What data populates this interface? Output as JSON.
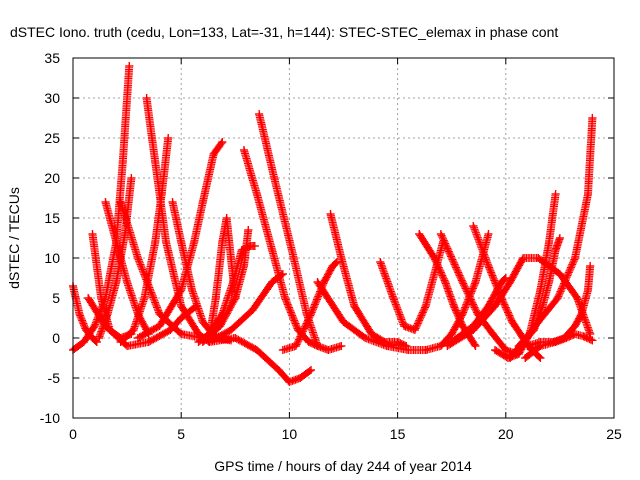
{
  "chart_data": {
    "type": "scatter",
    "title": "dSTEC Iono. truth (cedu, Lon=133, Lat=-31, h=144): STEC-STEC_elemax in phase cont",
    "xlabel": "GPS time / hours of day 244 of year 2014",
    "ylabel": "dSTEC  / TECUs",
    "xlim": [
      0,
      25
    ],
    "ylim": [
      -10,
      35
    ],
    "xticks": [
      0,
      5,
      10,
      15,
      20,
      25
    ],
    "yticks": [
      -10,
      -5,
      0,
      5,
      10,
      15,
      20,
      25,
      30,
      35
    ],
    "grid": true,
    "marker": "+",
    "color": "#ff0000",
    "series": [
      {
        "x": [
          0.0,
          0.3,
          0.6,
          0.9,
          1.1
        ],
        "y": [
          6.5,
          3.0,
          1.0,
          0.0,
          -0.5
        ]
      },
      {
        "x": [
          0.0,
          0.5,
          1.0,
          1.5,
          2.0,
          2.3,
          2.6
        ],
        "y": [
          -1.5,
          -0.5,
          1.5,
          5.0,
          12.0,
          22.0,
          34.0
        ]
      },
      {
        "x": [
          0.7,
          1.5,
          2.5,
          3.5,
          4.5,
          5.0,
          5.7
        ],
        "y": [
          5.0,
          1.5,
          -1.0,
          -0.5,
          1.0,
          2.5,
          4.0
        ]
      },
      {
        "x": [
          0.9,
          1.3,
          1.7,
          2.2,
          2.7
        ],
        "y": [
          13.0,
          5.0,
          1.0,
          0.0,
          0.5
        ]
      },
      {
        "x": [
          1.2,
          1.6,
          2.0,
          2.4,
          2.7
        ],
        "y": [
          0.0,
          3.0,
          7.0,
          13.0,
          20.0
        ]
      },
      {
        "x": [
          1.5,
          2.0,
          2.5,
          3.0,
          3.5
        ],
        "y": [
          17.0,
          12.0,
          7.0,
          3.0,
          0.5
        ]
      },
      {
        "x": [
          2.2,
          2.8,
          3.3,
          3.8,
          4.1,
          4.4
        ],
        "y": [
          -0.5,
          1.0,
          5.0,
          12.0,
          18.0,
          25.0
        ]
      },
      {
        "x": [
          3.4,
          3.8,
          4.3,
          5.0,
          5.8,
          6.3
        ],
        "y": [
          30.0,
          22.0,
          12.0,
          4.0,
          0.5,
          -0.5
        ]
      },
      {
        "x": [
          2.2,
          3.0,
          4.0,
          5.0,
          6.0,
          6.8
        ],
        "y": [
          17.0,
          10.0,
          3.0,
          0.5,
          0.0,
          0.2
        ]
      },
      {
        "x": [
          3.0,
          4.0,
          5.0,
          5.6,
          6.0,
          6.5,
          6.9
        ],
        "y": [
          0.0,
          1.5,
          6.0,
          12.0,
          17.0,
          23.0,
          24.5
        ]
      },
      {
        "x": [
          4.6,
          5.0,
          5.5,
          6.0,
          6.6,
          7.3
        ],
        "y": [
          17.0,
          12.0,
          6.0,
          2.0,
          0.0,
          -0.3
        ]
      },
      {
        "x": [
          6.3,
          6.6,
          6.9,
          7.1,
          7.3,
          7.5
        ],
        "y": [
          0.0,
          5.0,
          12.0,
          15.0,
          10.0,
          5.0
        ]
      },
      {
        "x": [
          6.0,
          6.8,
          7.5,
          7.9,
          8.1
        ],
        "y": [
          -0.5,
          1.5,
          5.0,
          9.0,
          13.5
        ]
      },
      {
        "x": [
          5.8,
          6.3,
          6.9,
          7.4,
          7.8,
          8.2,
          8.4
        ],
        "y": [
          -0.5,
          0.5,
          3.0,
          7.0,
          11.0,
          11.5,
          11.5
        ]
      },
      {
        "x": [
          6.3,
          7.3,
          8.3,
          9.2,
          9.7
        ],
        "y": [
          -0.5,
          1.0,
          3.5,
          7.0,
          8.0
        ]
      },
      {
        "x": [
          7.9,
          8.5,
          9.2,
          9.8,
          10.4,
          10.9,
          11.3
        ],
        "y": [
          23.5,
          18.0,
          11.0,
          5.0,
          1.0,
          -0.5,
          -1.0
        ]
      },
      {
        "x": [
          8.6,
          9.3,
          10.2,
          10.8,
          11.3,
          11.8,
          12.4
        ],
        "y": [
          28.0,
          20.0,
          10.0,
          3.0,
          -1.0,
          -1.5,
          -1.0
        ]
      },
      {
        "x": [
          6.3,
          7.5,
          8.5,
          9.5,
          10.0,
          10.5,
          11.0
        ],
        "y": [
          -0.5,
          0.0,
          -1.5,
          -4.0,
          -5.5,
          -5.0,
          -4.0
        ]
      },
      {
        "x": [
          9.7,
          10.3,
          11.0,
          11.6,
          12.0,
          12.2
        ],
        "y": [
          -1.5,
          -1.0,
          3.0,
          7.0,
          9.0,
          9.5
        ]
      },
      {
        "x": [
          11.9,
          12.4,
          13.0,
          13.8,
          14.4,
          15.0,
          15.4
        ],
        "y": [
          15.5,
          10.0,
          4.0,
          0.5,
          -0.5,
          -0.5,
          -1.0
        ]
      },
      {
        "x": [
          11.3,
          12.5,
          13.5,
          14.5,
          15.5,
          16.3
        ],
        "y": [
          7.0,
          2.0,
          0.0,
          -1.0,
          -1.5,
          -1.5
        ]
      },
      {
        "x": [
          14.2,
          14.8,
          15.3,
          15.8,
          16.3,
          16.8,
          17.1
        ],
        "y": [
          9.5,
          5.0,
          1.5,
          1.0,
          4.0,
          9.0,
          12.0
        ]
      },
      {
        "x": [
          16.0,
          16.7,
          17.2,
          17.6,
          18.0,
          18.6
        ],
        "y": [
          13.0,
          10.0,
          7.0,
          4.0,
          1.5,
          -1.0
        ]
      },
      {
        "x": [
          16.3,
          17.0,
          17.5,
          18.0,
          18.6,
          19.2
        ],
        "y": [
          -1.5,
          -1.0,
          0.5,
          3.0,
          7.0,
          13.0
        ]
      },
      {
        "x": [
          17.0,
          18.0,
          18.7,
          19.4,
          20.0,
          20.5
        ],
        "y": [
          13.0,
          7.0,
          3.0,
          0.5,
          -1.5,
          -2.0
        ]
      },
      {
        "x": [
          18.5,
          19.2,
          19.8,
          20.3,
          20.8,
          21.2,
          21.6
        ],
        "y": [
          14.0,
          9.0,
          5.0,
          2.0,
          0.0,
          -1.5,
          -2.5
        ]
      },
      {
        "x": [
          17.3,
          18.5,
          19.5,
          20.2,
          20.8,
          21.5,
          22.5,
          23.3,
          23.9
        ],
        "y": [
          -1.0,
          1.0,
          4.0,
          7.0,
          10.0,
          10.0,
          8.0,
          5.0,
          0.5
        ]
      },
      {
        "x": [
          17.5,
          18.5,
          19.2,
          19.6,
          19.8,
          20.0
        ],
        "y": [
          -0.5,
          1.5,
          4.0,
          6.0,
          7.0,
          7.5
        ]
      },
      {
        "x": [
          19.5,
          20.1,
          20.6,
          21.1,
          21.6,
          22.0,
          22.3
        ],
        "y": [
          -1.5,
          -2.5,
          -2.0,
          0.5,
          6.0,
          12.0,
          18.0
        ]
      },
      {
        "x": [
          20.6,
          21.3,
          21.7,
          22.0,
          22.3,
          22.5
        ],
        "y": [
          -1.0,
          1.0,
          4.0,
          7.0,
          11.0,
          12.5
        ]
      },
      {
        "x": [
          20.2,
          20.8,
          21.5,
          22.4,
          23.2,
          23.8,
          24.0
        ],
        "y": [
          -2.5,
          -0.5,
          2.0,
          5.0,
          10.0,
          18.0,
          27.5
        ]
      },
      {
        "x": [
          21.0,
          21.6,
          22.2,
          22.7,
          23.2,
          23.5,
          23.8,
          23.9
        ],
        "y": [
          -1.0,
          -0.5,
          -0.5,
          0.0,
          1.5,
          3.0,
          6.0,
          9.0
        ]
      },
      {
        "x": [
          20.9,
          21.6,
          22.3,
          22.8,
          23.2,
          23.6,
          24.0
        ],
        "y": [
          -2.5,
          -1.0,
          -0.5,
          0.0,
          0.5,
          0.2,
          -0.3
        ]
      }
    ]
  }
}
